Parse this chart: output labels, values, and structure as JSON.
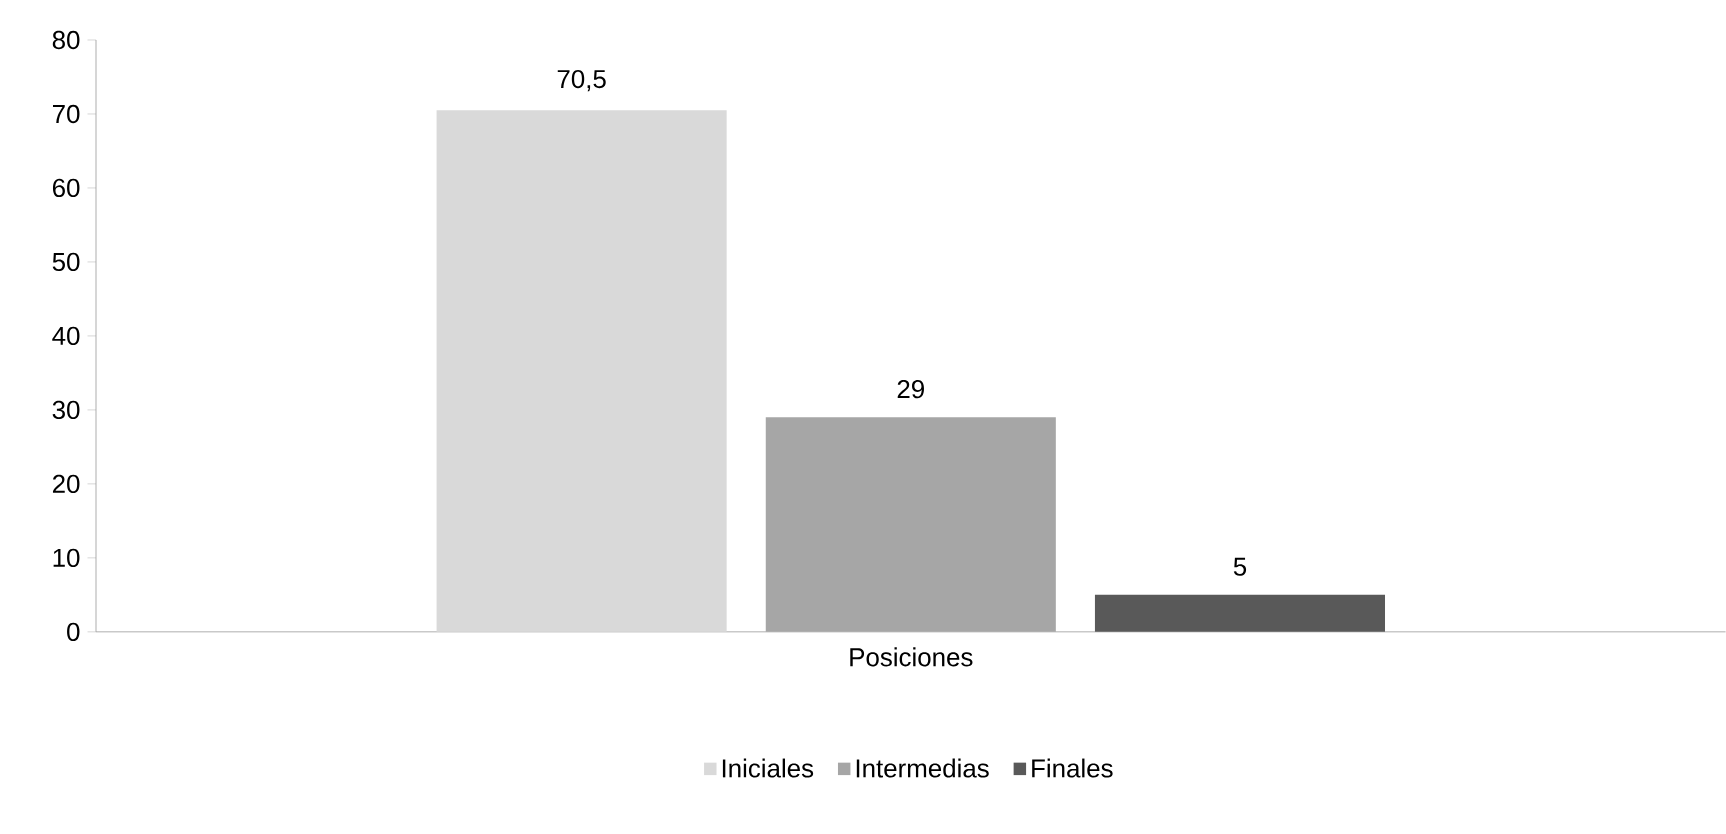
{
  "chart_data": {
    "type": "bar",
    "categories": [
      "Posiciones"
    ],
    "series": [
      {
        "name": "Iniciales",
        "color": "#d9d9d9",
        "values": [
          70.5
        ],
        "value_labels": [
          "70,5"
        ]
      },
      {
        "name": "Intermedias",
        "color": "#a6a6a6",
        "values": [
          29
        ],
        "value_labels": [
          "29"
        ]
      },
      {
        "name": "Finales",
        "color": "#595959",
        "values": [
          5
        ],
        "value_labels": [
          "5"
        ]
      }
    ],
    "ylim": [
      0,
      80
    ],
    "yticks": [
      0,
      10,
      20,
      30,
      40,
      50,
      60,
      70,
      80
    ],
    "grid": false,
    "legend": "bottom"
  }
}
